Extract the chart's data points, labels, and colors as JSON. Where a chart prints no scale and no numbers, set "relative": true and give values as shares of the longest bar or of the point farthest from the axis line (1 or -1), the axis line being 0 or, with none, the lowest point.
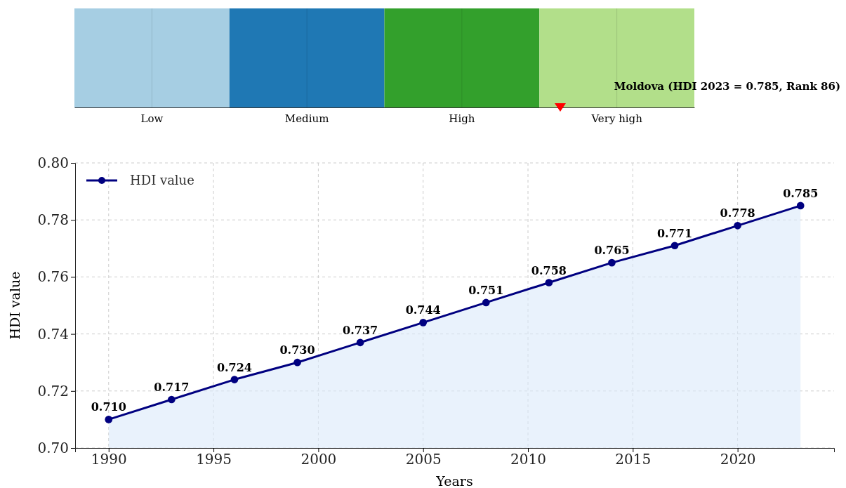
{
  "chart_data": [
    {
      "type": "bar",
      "relative": true,
      "categories": [
        "Low",
        "Medium",
        "High",
        "Very high"
      ],
      "values": [
        1,
        1,
        1,
        1
      ],
      "colors": [
        "#a6cee3",
        "#1f78b4",
        "#33a02c",
        "#b2df8a"
      ],
      "grid": "x",
      "annotations": [
        "Moldova (HDI 2023 = 0.785, Rank 86)"
      ]
    },
    {
      "type": "area",
      "x": [
        1990,
        1993,
        1996,
        1999,
        2002,
        2005,
        2008,
        2011,
        2014,
        2017,
        2020,
        2023
      ],
      "series": [
        {
          "name": "HDI value",
          "color": "#000080",
          "values": [
            0.71,
            0.717,
            0.724,
            0.73,
            0.737,
            0.744,
            0.751,
            0.758,
            0.765,
            0.771,
            0.778,
            0.785
          ],
          "value_labels": [
            "0.710",
            "0.717",
            "0.724",
            "0.730",
            "0.737",
            "0.744",
            "0.751",
            "0.758",
            "0.765",
            "0.771",
            "0.778",
            "0.785"
          ]
        }
      ],
      "xlabel": "Years",
      "ylabel": "HDI value",
      "xlim": [
        1988.4,
        2024.6
      ],
      "xticks": [
        1990,
        1995,
        2000,
        2005,
        2010,
        2015,
        2020
      ],
      "ylim": [
        0.7,
        0.8
      ],
      "yticks": [
        {
          "value": 0.7,
          "label": "0.70"
        },
        {
          "value": 0.72,
          "label": "0.72"
        },
        {
          "value": 0.74,
          "label": "0.74"
        },
        {
          "value": 0.76,
          "label": "0.76"
        },
        {
          "value": 0.78,
          "label": "0.78"
        },
        {
          "value": 0.8,
          "label": "0.80"
        }
      ],
      "grid": true,
      "legend": "top left",
      "marker": "circle",
      "line_style": "solid"
    }
  ]
}
